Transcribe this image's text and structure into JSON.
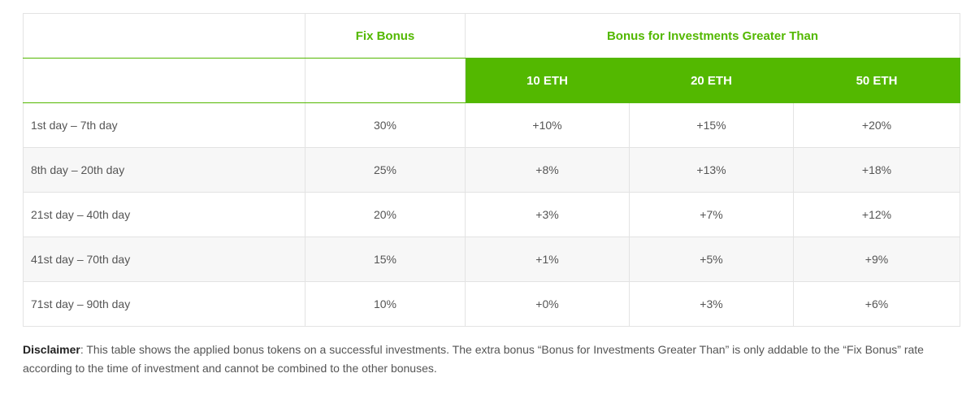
{
  "table": {
    "header_top": {
      "period": "",
      "fix_bonus": "Fix Bonus",
      "investment_bonus": "Bonus for Investments Greater Than"
    },
    "header_sub": {
      "period": "",
      "fix_bonus": "",
      "tiers": [
        "10 ETH",
        "20 ETH",
        "50 ETH"
      ]
    },
    "rows": [
      {
        "period": "1st day – 7th day",
        "fix": "30%",
        "t10": "+10%",
        "t20": "+15%",
        "t50": "+20%"
      },
      {
        "period": "8th day – 20th day",
        "fix": "25%",
        "t10": "+8%",
        "t20": "+13%",
        "t50": "+18%"
      },
      {
        "period": "21st day – 40th day",
        "fix": "20%",
        "t10": "+3%",
        "t20": "+7%",
        "t50": "+12%"
      },
      {
        "period": "41st day – 70th day",
        "fix": "15%",
        "t10": "+1%",
        "t20": "+5%",
        "t50": "+9%"
      },
      {
        "period": "71st day – 90th day",
        "fix": "10%",
        "t10": "+0%",
        "t20": "+3%",
        "t50": "+6%"
      }
    ]
  },
  "disclaimer": {
    "label": "Disclaimer",
    "text": ": This table shows the applied bonus tokens on a successful investments. The extra bonus “Bonus for Investments Greater Than” is only addable to the “Fix Bonus” rate according to the time of investment and cannot be combined to the other bonuses."
  },
  "colors": {
    "accent": "#53b800",
    "row_alt": "#f7f7f7",
    "border": "#e3e3e3"
  }
}
